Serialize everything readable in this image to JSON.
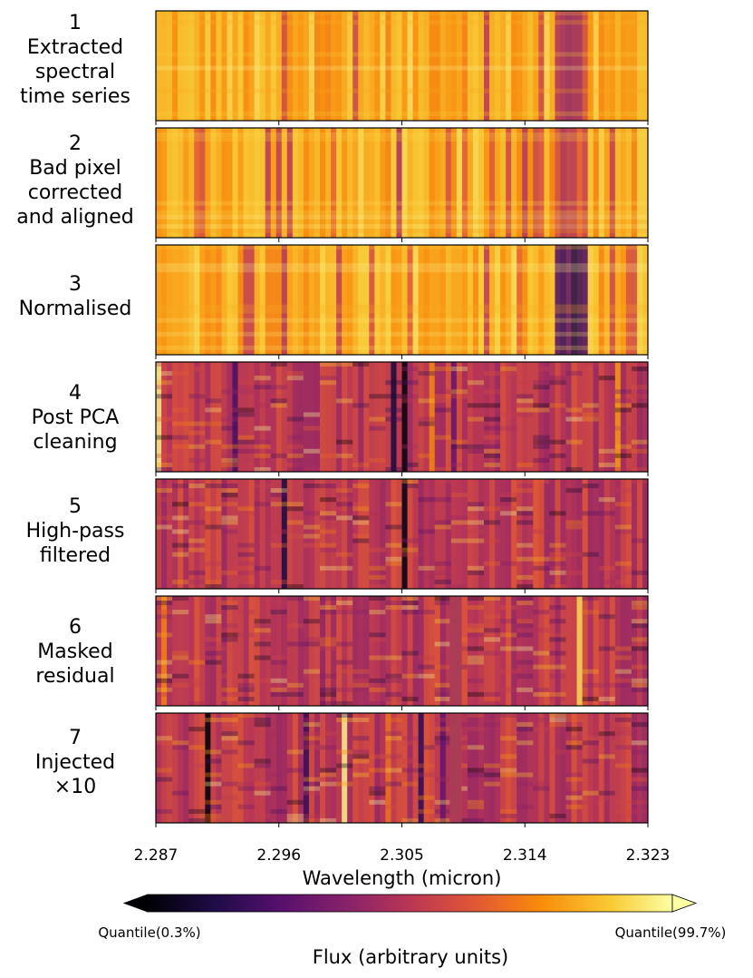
{
  "chart_data": {
    "type": "heatmap",
    "xlabel": "Wavelength (micron)",
    "xlim": [
      2.287,
      2.323
    ],
    "xticks": [
      "2.287",
      "2.296",
      "2.305",
      "2.314",
      "2.323"
    ],
    "colormap": "inferno",
    "colorbar": {
      "label": "Flux (arbitrary units)",
      "min_label": "Quantile(0.3%)",
      "max_label": "Quantile(99.7%)",
      "extend": "both"
    },
    "panels": [
      {
        "label_lines": [
          "1",
          "Extracted",
          "spectral",
          "time series"
        ]
      },
      {
        "label_lines": [
          "2",
          "Bad pixel",
          "corrected",
          "and aligned"
        ]
      },
      {
        "label_lines": [
          "3",
          "Normalised"
        ]
      },
      {
        "label_lines": [
          "4",
          "Post PCA",
          "cleaning"
        ]
      },
      {
        "label_lines": [
          "5",
          "High-pass",
          "filtered"
        ]
      },
      {
        "label_lines": [
          "6",
          "Masked",
          "residual"
        ]
      },
      {
        "label_lines": [
          "7",
          "Injected",
          "×10"
        ]
      }
    ]
  }
}
